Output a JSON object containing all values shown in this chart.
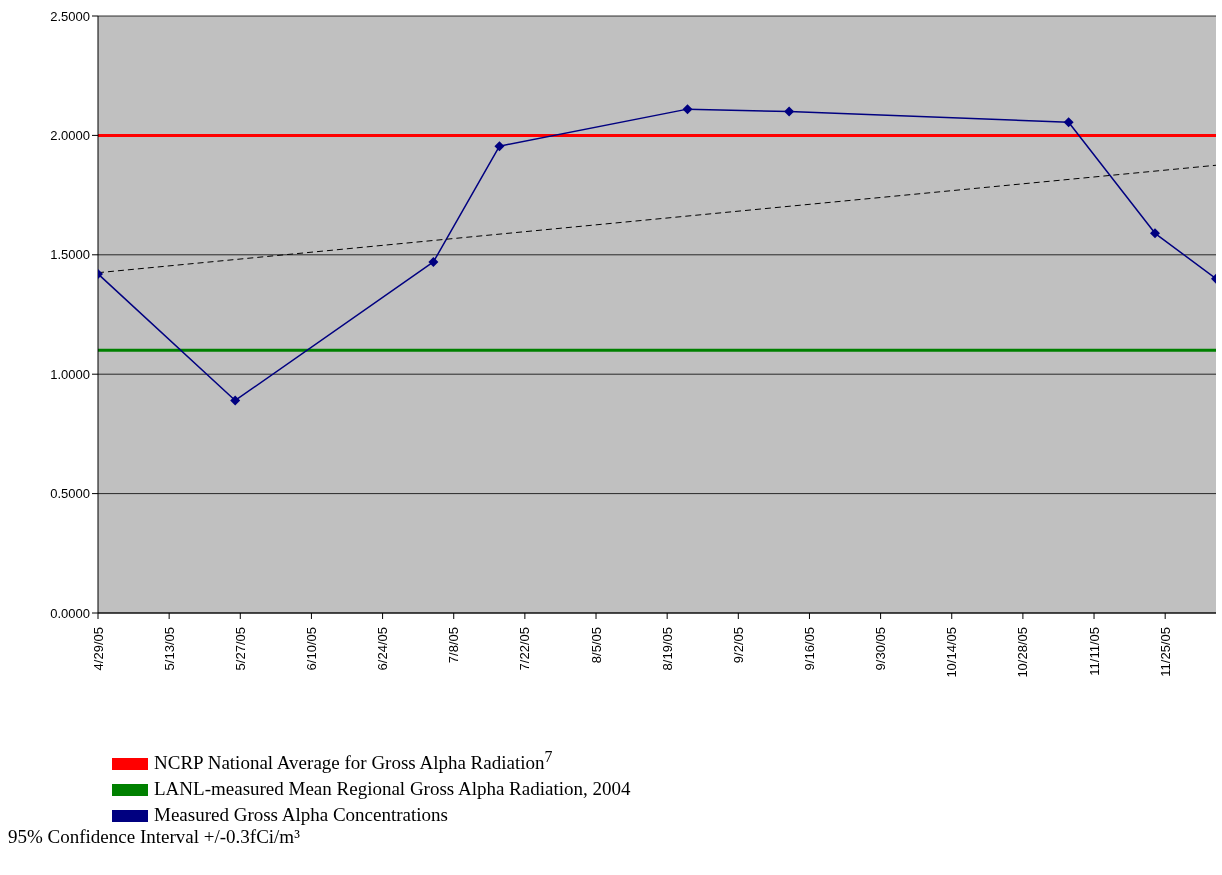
{
  "chart_data": {
    "type": "line",
    "series": [
      {
        "name": "Measured Gross Alpha Concentrations",
        "color": "#000080",
        "marker": "diamond",
        "line_style": "solid",
        "x": [
          "--04-29",
          "--05-26",
          "--07-04",
          "--07-17",
          "--08-23",
          "--09-12",
          "--11-06",
          "--11-23",
          "--12-05"
        ],
        "values": [
          1.42,
          0.89,
          1.47,
          1.955,
          2.11,
          2.1,
          2.055,
          1.59,
          1.4
        ]
      },
      {
        "color": "#000000",
        "marker": "none",
        "line_style": "dashed",
        "x": [
          "--04-29",
          "--12-05"
        ],
        "values": [
          1.425,
          1.875
        ]
      }
    ],
    "ref_lines": [
      {
        "axis": "y",
        "value": 2.0,
        "label": "NCRP National Average for Gross Alpha Radiation$^{7}$",
        "color": "#ff0000"
      },
      {
        "axis": "y",
        "value": 1.1,
        "label": "LANL-measured Mean Regional Gross Alpha Radiation, 2004",
        "color": "#008000"
      }
    ],
    "xlim": [
      "--04-29",
      "--12-05"
    ],
    "xticks": [
      {
        "value": "--04-29",
        "label": "4/29/05"
      },
      {
        "value": "--05-13",
        "label": "5/13/05"
      },
      {
        "value": "--05-27",
        "label": "5/27/05"
      },
      {
        "value": "--06-10",
        "label": "6/10/05"
      },
      {
        "value": "--06-24",
        "label": "6/24/05"
      },
      {
        "value": "--07-08",
        "label": "7/8/05"
      },
      {
        "value": "--07-22",
        "label": "7/22/05"
      },
      {
        "value": "--08-05",
        "label": "8/5/05"
      },
      {
        "value": "--08-19",
        "label": "8/19/05"
      },
      {
        "value": "--09-02",
        "label": "9/2/05"
      },
      {
        "value": "--09-16",
        "label": "9/16/05"
      },
      {
        "value": "--09-30",
        "label": "9/30/05"
      },
      {
        "value": "--10-14",
        "label": "10/14/05"
      },
      {
        "value": "--10-28",
        "label": "10/28/05"
      },
      {
        "value": "--11-11",
        "label": "11/11/05"
      },
      {
        "value": "--11-25",
        "label": "11/25/05"
      }
    ],
    "ylim": [
      0,
      2.5
    ],
    "yticks": [
      {
        "value": 0,
        "label": "0.0000"
      },
      {
        "value": 0.5,
        "label": "0.5000"
      },
      {
        "value": 1,
        "label": "1.0000"
      },
      {
        "value": 1.5,
        "label": "1.5000"
      },
      {
        "value": 2,
        "label": "2.0000"
      },
      {
        "value": 2.5,
        "label": "2.5000"
      }
    ],
    "grid": "y",
    "legend": "bottom",
    "annotations": [
      "95% Confidence Interval +/-0.3fCi/m³"
    ]
  }
}
